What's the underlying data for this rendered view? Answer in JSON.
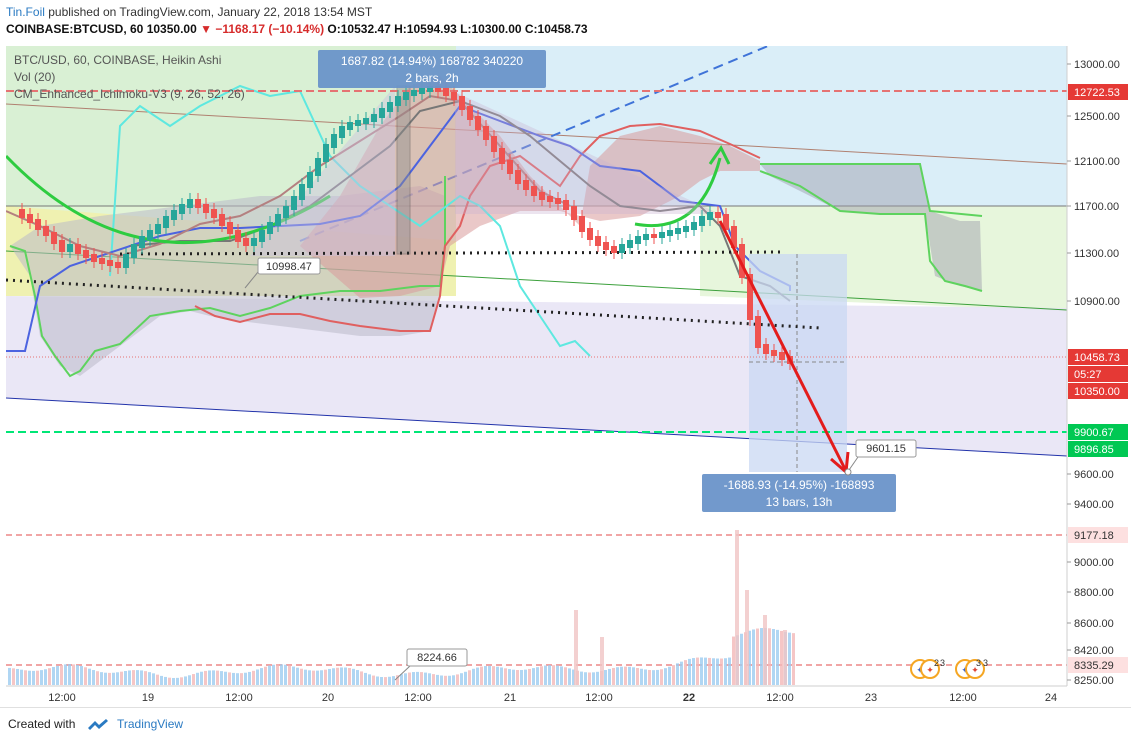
{
  "header": {
    "author": "Tin.Foil",
    "published_text": " published on TradingView.com, January 22, 2018 13:54 MST",
    "symbol": "COINBASE:BTCUSD, 60",
    "price": "10350.00",
    "change": "▼ −1168.17 (−10.14%)",
    "ohlc": "O:10532.47 H:10594.93 L:10300.00 C:10458.73"
  },
  "legend": {
    "line1": "BTC/USD, 60, COINBASE, Heikin Ashi",
    "line2": "Vol (20)",
    "line3": "CM_Enhanced_Ichimoku-V3 (9, 26, 52, 26)"
  },
  "footer": {
    "created_with": "Created with",
    "brand": "TradingView"
  },
  "colors": {
    "up": "#26a69a",
    "down": "#ef5350",
    "accent_blue": "#2a7ac2",
    "green_level": "#00e676",
    "red_level": "#e53935"
  },
  "chart_data": {
    "type": "candlestick",
    "price_axis": {
      "ticks": [
        "13000.00",
        "12500.00",
        "12100.00",
        "11700.00",
        "11300.00",
        "10900.00",
        "9600.00",
        "9400.00",
        "9000.00",
        "8800.00",
        "8600.00",
        "8420.00",
        "8250.00"
      ],
      "labels": [
        {
          "text": "12722.53",
          "value": 12722.53,
          "color": "#e53935"
        },
        {
          "text": "10458.73",
          "value": 10458.73,
          "color": "#e53935"
        },
        {
          "text": "05:27",
          "value": 10404,
          "color": "#e53935"
        },
        {
          "text": "10350.00",
          "value": 10350.0,
          "color": "#e53935"
        },
        {
          "text": "9900.67",
          "value": 9900.67,
          "color": "#00c853"
        },
        {
          "text": "9896.85",
          "value": 9896.85,
          "color": "#00c853"
        },
        {
          "text": "9177.18",
          "value": 9177.18,
          "color": "#fde0e0"
        },
        {
          "text": "8335.29",
          "value": 8335.29,
          "color": "#fde0e0"
        }
      ]
    },
    "time_axis": {
      "ticks": [
        "12:00",
        "19",
        "12:00",
        "20",
        "12:00",
        "21",
        "12:00",
        "22",
        "12:00",
        "23",
        "12:00",
        "24"
      ]
    },
    "annotations": [
      {
        "text": "1687.82 (14.94%) 168782  340220",
        "sub": "2 bars, 2h"
      },
      {
        "text": "-1688.93 (-14.95%) -168893",
        "sub": "13 bars, 13h"
      },
      {
        "text": "10998.47"
      },
      {
        "text": "9601.15"
      },
      {
        "text": "8224.66"
      }
    ],
    "event_badges": [
      "2",
      "3",
      "3",
      "3"
    ]
  }
}
